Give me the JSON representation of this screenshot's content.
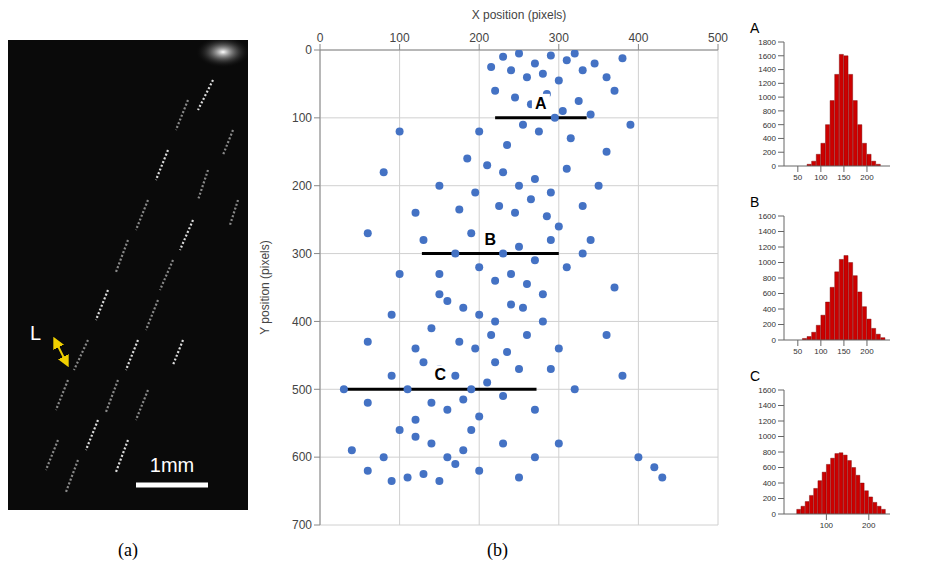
{
  "image_panel": {
    "caption": "(a)",
    "label": "L",
    "scale_bar": "1mm"
  },
  "chart_data": [
    {
      "type": "scatter",
      "caption": "(b)",
      "x_label": "X position (pixels)",
      "y_label": "Y position (pixels)",
      "x": [
        230,
        250,
        270,
        290,
        310,
        330,
        260,
        280,
        300,
        320,
        345,
        240,
        215,
        360,
        380,
        220,
        245,
        265,
        285,
        305,
        325,
        255,
        275,
        295,
        315,
        235,
        200,
        340,
        185,
        370,
        100,
        360,
        390,
        210,
        230,
        250,
        270,
        290,
        310,
        225,
        245,
        265,
        285,
        195,
        175,
        330,
        150,
        350,
        80,
        120,
        300,
        190,
        210,
        230,
        250,
        270,
        290,
        200,
        220,
        240,
        260,
        170,
        150,
        310,
        130,
        60,
        100,
        330,
        280,
        160,
        180,
        200,
        220,
        240,
        260,
        175,
        195,
        215,
        235,
        140,
        120,
        280,
        90,
        60,
        300,
        150,
        255,
        130,
        150,
        170,
        190,
        210,
        230,
        140,
        160,
        180,
        200,
        110,
        90,
        250,
        60,
        30,
        270,
        120,
        220,
        100,
        120,
        140,
        160,
        180,
        200,
        110,
        130,
        150,
        170,
        80,
        60,
        230,
        40,
        250,
        90,
        190,
        270,
        340,
        370,
        360,
        380,
        400,
        420,
        430,
        300,
        320,
        290
      ],
      "values": [
        10,
        5,
        20,
        8,
        15,
        30,
        40,
        35,
        45,
        5,
        20,
        30,
        25,
        40,
        12,
        60,
        70,
        80,
        65,
        90,
        75,
        110,
        120,
        100,
        130,
        140,
        120,
        95,
        160,
        60,
        120,
        150,
        110,
        170,
        180,
        200,
        190,
        210,
        175,
        230,
        240,
        220,
        245,
        210,
        235,
        230,
        200,
        200,
        180,
        240,
        260,
        270,
        280,
        300,
        290,
        310,
        280,
        320,
        340,
        330,
        345,
        300,
        330,
        320,
        280,
        270,
        330,
        300,
        360,
        370,
        380,
        390,
        400,
        375,
        420,
        430,
        440,
        420,
        445,
        410,
        440,
        400,
        390,
        430,
        440,
        360,
        380,
        460,
        470,
        480,
        500,
        490,
        510,
        520,
        530,
        515,
        540,
        500,
        480,
        470,
        520,
        500,
        530,
        545,
        460,
        560,
        570,
        580,
        600,
        590,
        620,
        630,
        625,
        635,
        610,
        600,
        620,
        580,
        590,
        630,
        635,
        560,
        600,
        280,
        350,
        420,
        480,
        600,
        615,
        630,
        580,
        500,
        470
      ],
      "color": "#4472c4",
      "marker": "circle",
      "xlim": [
        0,
        500
      ],
      "xticks": [
        0,
        100,
        200,
        300,
        400,
        500
      ],
      "ylim": [
        0,
        700
      ],
      "yticks": [
        0,
        100,
        200,
        300,
        400,
        500,
        600,
        700
      ],
      "grid": true,
      "annotations": [
        {
          "text": "A",
          "y": 100,
          "x": [
            220,
            335
          ]
        },
        {
          "text": "B",
          "y": 300,
          "x": [
            128,
            300
          ]
        },
        {
          "text": "C",
          "y": 500,
          "x": [
            30,
            272
          ]
        }
      ]
    },
    {
      "type": "histogram",
      "title": "A",
      "bins": [
        70,
        80,
        90,
        100,
        110,
        120,
        130,
        140,
        150,
        160,
        170,
        180,
        190,
        200,
        210,
        220,
        230
      ],
      "values": [
        25,
        70,
        170,
        330,
        600,
        950,
        1330,
        1620,
        1600,
        1330,
        950,
        600,
        330,
        170,
        70,
        25
      ],
      "color": "#cc0000",
      "xlim": [
        20,
        250
      ],
      "xticks": [
        50,
        100,
        150,
        200
      ],
      "ylim": [
        0,
        1800
      ],
      "yticks": [
        0,
        200,
        400,
        600,
        800,
        1000,
        1200,
        1400,
        1600,
        1800
      ],
      "grid": false
    },
    {
      "type": "histogram",
      "title": "B",
      "bins": [
        60,
        70,
        80,
        90,
        100,
        110,
        120,
        130,
        140,
        150,
        160,
        170,
        180,
        190,
        200,
        210,
        220,
        230,
        240
      ],
      "values": [
        20,
        45,
        100,
        190,
        320,
        490,
        680,
        880,
        1040,
        1090,
        1000,
        830,
        620,
        430,
        270,
        150,
        75,
        30
      ],
      "color": "#cc0000",
      "xlim": [
        20,
        250
      ],
      "xticks": [
        50,
        100,
        150,
        200
      ],
      "ylim": [
        0,
        1600
      ],
      "yticks": [
        0,
        200,
        400,
        600,
        800,
        1000,
        1200,
        1400,
        1600
      ],
      "grid": false
    },
    {
      "type": "histogram",
      "title": "C",
      "bins": [
        30,
        40,
        50,
        60,
        70,
        80,
        90,
        100,
        110,
        120,
        130,
        140,
        150,
        160,
        170,
        180,
        190,
        200,
        210,
        220,
        230,
        240
      ],
      "values": [
        60,
        100,
        160,
        240,
        330,
        430,
        540,
        640,
        720,
        780,
        790,
        760,
        690,
        600,
        500,
        400,
        300,
        220,
        150,
        100,
        60
      ],
      "color": "#cc0000",
      "xlim": [
        0,
        250
      ],
      "xticks": [
        100,
        200
      ],
      "ylim": [
        0,
        1600
      ],
      "yticks": [
        0,
        200,
        400,
        600,
        800,
        1000,
        1200,
        1400,
        1600
      ],
      "grid": false
    }
  ]
}
